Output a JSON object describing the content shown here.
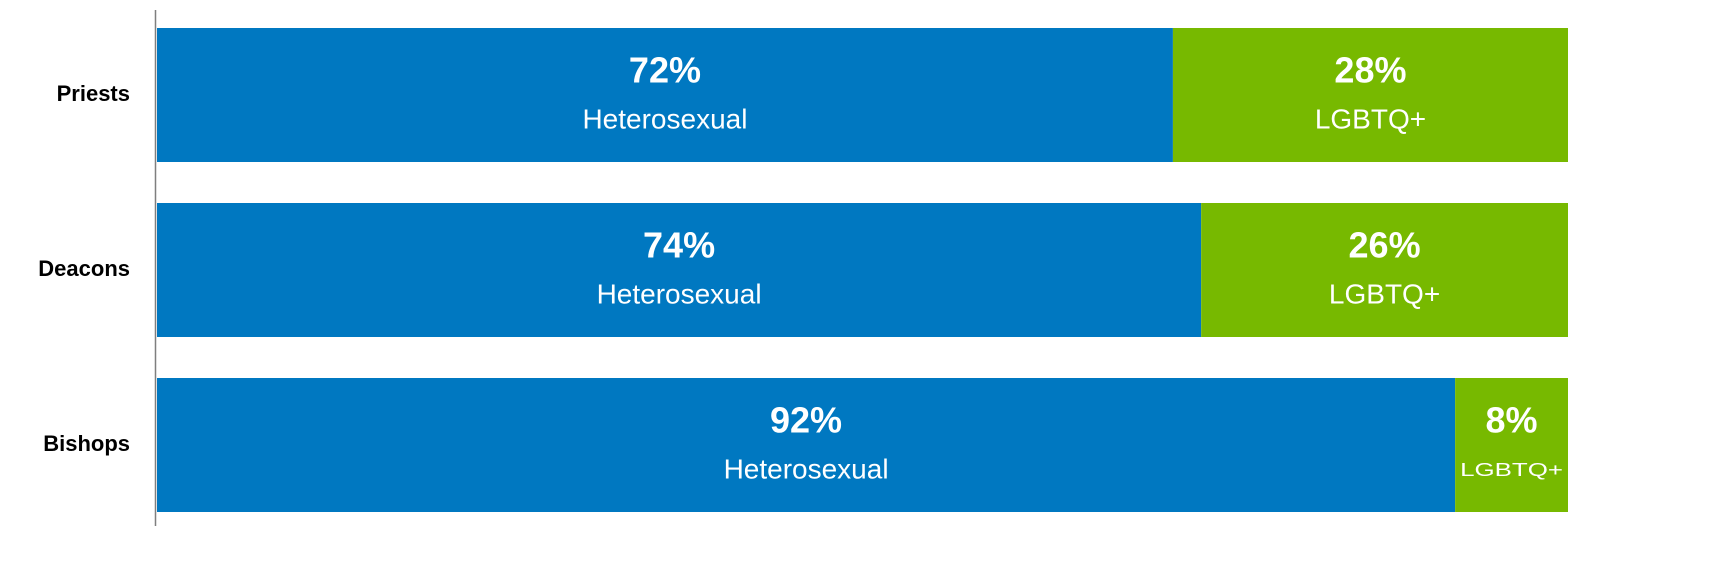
{
  "chart_data": {
    "type": "stacked-bar-horizontal",
    "categories": [
      "Priests",
      "Deacons",
      "Bishops"
    ],
    "series": [
      {
        "name": "Heterosexual",
        "color": "#0078c1",
        "values": [
          72,
          74,
          92
        ],
        "value_labels": [
          "72%",
          "74%",
          "92%"
        ]
      },
      {
        "name": "LGBTQ+",
        "color": "#77b900",
        "values": [
          28,
          26,
          8
        ],
        "value_labels": [
          "28%",
          "26%",
          "8%"
        ]
      }
    ],
    "xlim": [
      0,
      100
    ]
  }
}
